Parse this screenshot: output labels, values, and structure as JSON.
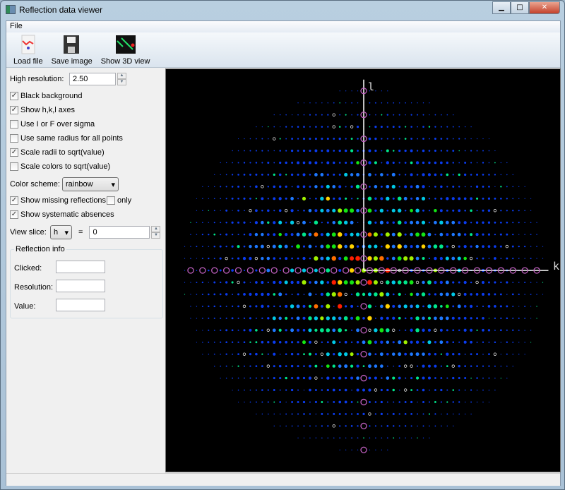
{
  "window": {
    "title": "Reflection data viewer",
    "minimize": "▁",
    "maximize": "□",
    "close": "✕"
  },
  "menu": {
    "file": "File"
  },
  "toolbar": {
    "load": "Load file",
    "save": "Save image",
    "show3d": "Show 3D view"
  },
  "controls": {
    "high_resolution_label": "High resolution:",
    "high_resolution_value": "2.50",
    "black_background": {
      "label": "Black background",
      "checked": true
    },
    "show_axes": {
      "label": "Show h,k,l axes",
      "checked": true
    },
    "i_over_sigma": {
      "label": "Use I or F over sigma",
      "checked": false
    },
    "same_radius": {
      "label": "Use same radius for all points",
      "checked": false
    },
    "scale_radii": {
      "label": "Scale radii to sqrt(value)",
      "checked": true
    },
    "scale_colors": {
      "label": "Scale colors to sqrt(value)",
      "checked": false
    },
    "color_scheme_label": "Color scheme:",
    "color_scheme_value": "rainbow",
    "show_missing": {
      "label": "Show missing reflections",
      "checked": true
    },
    "only": {
      "label": "only",
      "checked": false
    },
    "show_absences": {
      "label": "Show systematic absences",
      "checked": true
    },
    "view_slice_label": "View slice:",
    "slice_axis": "h",
    "equals": "=",
    "slice_value": "0"
  },
  "reflection_info": {
    "title": "Reflection info",
    "clicked_label": "Clicked:",
    "clicked": "",
    "resolution_label": "Resolution:",
    "resolution": "",
    "value_label": "Value:",
    "value": ""
  },
  "viewer": {
    "axis_vertical": "l",
    "axis_horizontal": "k",
    "background": "#000000",
    "axis_color": "#ffffff",
    "absence_color": "#c060c0",
    "missing_color": "#e0e0e0",
    "colors": [
      "#0a3cf0",
      "#1e78ff",
      "#00c8e6",
      "#00e68c",
      "#14e614",
      "#a0f000",
      "#ffd200",
      "#ff6e00",
      "#ff1e00"
    ],
    "k_range": [
      -30,
      30
    ],
    "l_range": [
      -15,
      15
    ]
  }
}
